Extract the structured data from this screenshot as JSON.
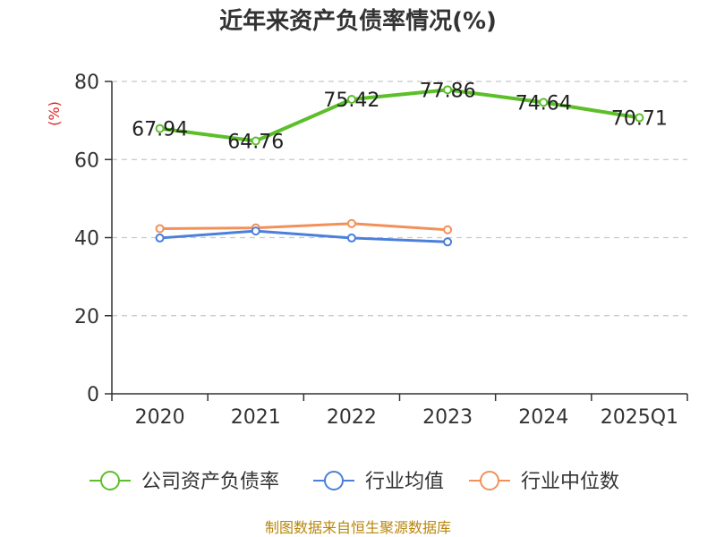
{
  "chart_data": {
    "type": "line",
    "title": "近年来资产负债率情况(%)",
    "ylabel": "(%)",
    "xlabel": "",
    "categories": [
      "2020",
      "2021",
      "2022",
      "2023",
      "2024",
      "2025Q1"
    ],
    "ylim": [
      0,
      80
    ],
    "yticks": [
      "0",
      "20",
      "40",
      "60",
      "80"
    ],
    "grid": true,
    "legend_position": "bottom",
    "series": [
      {
        "name": "公司资产负债率",
        "color": "#5cbf2a",
        "values": [
          67.94,
          64.76,
          75.42,
          77.86,
          74.64,
          70.71
        ],
        "labels": [
          "67.94",
          "64.76",
          "75.42",
          "77.86",
          "74.64",
          "70.71"
        ]
      },
      {
        "name": "行业均值",
        "color": "#4a7fdb",
        "values": [
          39.9,
          41.7,
          39.9,
          38.9,
          null,
          null
        ],
        "labels": []
      },
      {
        "name": "行业中位数",
        "color": "#f2905a",
        "values": [
          42.3,
          42.5,
          43.6,
          42.0,
          null,
          null
        ],
        "labels": []
      }
    ],
    "source": "制图数据来自恒生聚源数据库"
  }
}
